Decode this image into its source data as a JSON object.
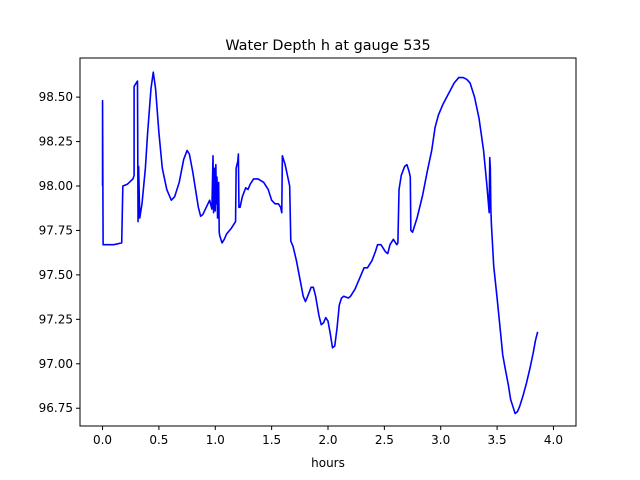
{
  "chart_data": {
    "type": "line",
    "title": "Water Depth h at gauge 535",
    "xlabel": "hours",
    "ylabel": "",
    "xlim": [
      -0.2,
      4.2
    ],
    "ylim": [
      96.65,
      98.72
    ],
    "x_ticks": [
      0.0,
      0.5,
      1.0,
      1.5,
      2.0,
      2.5,
      3.0,
      3.5,
      4.0
    ],
    "x_tick_labels": [
      "0.0",
      "0.5",
      "1.0",
      "1.5",
      "2.0",
      "2.5",
      "3.0",
      "3.5",
      "4.0"
    ],
    "y_ticks": [
      96.75,
      97.0,
      97.25,
      97.5,
      97.75,
      98.0,
      98.25,
      98.5
    ],
    "y_tick_labels": [
      "96.75",
      "97.00",
      "97.25",
      "97.50",
      "97.75",
      "98.00",
      "98.25",
      "98.50"
    ],
    "grid": false,
    "colors": {
      "line": "#0000ff",
      "axes": "#000000",
      "background": "#ffffff"
    },
    "series": [
      {
        "name": "",
        "points": [
          [
            0.0,
            98.0
          ],
          [
            0.0,
            98.48
          ],
          [
            0.005,
            97.67
          ],
          [
            0.1,
            97.67
          ],
          [
            0.17,
            97.68
          ],
          [
            0.18,
            98.0
          ],
          [
            0.22,
            98.01
          ],
          [
            0.27,
            98.04
          ],
          [
            0.28,
            98.06
          ],
          [
            0.28,
            98.56
          ],
          [
            0.31,
            98.59
          ],
          [
            0.315,
            97.8
          ],
          [
            0.32,
            98.08
          ],
          [
            0.32,
            98.11
          ],
          [
            0.33,
            97.82
          ],
          [
            0.35,
            97.9
          ],
          [
            0.38,
            98.1
          ],
          [
            0.4,
            98.3
          ],
          [
            0.43,
            98.55
          ],
          [
            0.45,
            98.64
          ],
          [
            0.47,
            98.55
          ],
          [
            0.5,
            98.3
          ],
          [
            0.53,
            98.1
          ],
          [
            0.57,
            97.98
          ],
          [
            0.61,
            97.92
          ],
          [
            0.64,
            97.94
          ],
          [
            0.68,
            98.02
          ],
          [
            0.72,
            98.15
          ],
          [
            0.75,
            98.2
          ],
          [
            0.77,
            98.18
          ],
          [
            0.8,
            98.08
          ],
          [
            0.82,
            98.0
          ],
          [
            0.85,
            97.88
          ],
          [
            0.87,
            97.83
          ],
          [
            0.89,
            97.84
          ],
          [
            0.92,
            97.88
          ],
          [
            0.95,
            97.92
          ],
          [
            0.97,
            97.87
          ],
          [
            0.98,
            98.17
          ],
          [
            0.985,
            97.85
          ],
          [
            0.99,
            98.1
          ],
          [
            1.0,
            97.86
          ],
          [
            1.005,
            98.12
          ],
          [
            1.01,
            97.9
          ],
          [
            1.015,
            98.05
          ],
          [
            1.02,
            97.82
          ],
          [
            1.03,
            98.02
          ],
          [
            1.035,
            97.74
          ],
          [
            1.04,
            97.72
          ],
          [
            1.06,
            97.68
          ],
          [
            1.08,
            97.7
          ],
          [
            1.1,
            97.73
          ],
          [
            1.14,
            97.76
          ],
          [
            1.18,
            97.8
          ],
          [
            1.185,
            98.1
          ],
          [
            1.2,
            98.14
          ],
          [
            1.205,
            98.18
          ],
          [
            1.21,
            97.88
          ],
          [
            1.22,
            97.88
          ],
          [
            1.24,
            97.94
          ],
          [
            1.27,
            97.99
          ],
          [
            1.29,
            97.98
          ],
          [
            1.31,
            98.01
          ],
          [
            1.34,
            98.04
          ],
          [
            1.38,
            98.04
          ],
          [
            1.43,
            98.02
          ],
          [
            1.47,
            97.98
          ],
          [
            1.5,
            97.92
          ],
          [
            1.53,
            97.9
          ],
          [
            1.56,
            97.9
          ],
          [
            1.58,
            97.88
          ],
          [
            1.59,
            97.85
          ],
          [
            1.595,
            98.17
          ],
          [
            1.62,
            98.12
          ],
          [
            1.66,
            98.0
          ],
          [
            1.67,
            97.69
          ],
          [
            1.69,
            97.66
          ],
          [
            1.72,
            97.58
          ],
          [
            1.75,
            97.48
          ],
          [
            1.78,
            97.38
          ],
          [
            1.8,
            97.35
          ],
          [
            1.82,
            97.38
          ],
          [
            1.85,
            97.43
          ],
          [
            1.87,
            97.43
          ],
          [
            1.89,
            97.38
          ],
          [
            1.92,
            97.27
          ],
          [
            1.94,
            97.22
          ],
          [
            1.96,
            97.23
          ],
          [
            1.98,
            97.26
          ],
          [
            2.0,
            97.24
          ],
          [
            2.02,
            97.17
          ],
          [
            2.04,
            97.09
          ],
          [
            2.06,
            97.1
          ],
          [
            2.08,
            97.2
          ],
          [
            2.1,
            97.33
          ],
          [
            2.12,
            97.37
          ],
          [
            2.14,
            97.38
          ],
          [
            2.18,
            97.37
          ],
          [
            2.2,
            97.38
          ],
          [
            2.24,
            97.42
          ],
          [
            2.28,
            97.48
          ],
          [
            2.32,
            97.54
          ],
          [
            2.35,
            97.54
          ],
          [
            2.39,
            97.58
          ],
          [
            2.42,
            97.63
          ],
          [
            2.44,
            97.67
          ],
          [
            2.47,
            97.67
          ],
          [
            2.51,
            97.63
          ],
          [
            2.53,
            97.62
          ],
          [
            2.55,
            97.67
          ],
          [
            2.58,
            97.7
          ],
          [
            2.61,
            97.67
          ],
          [
            2.62,
            97.68
          ],
          [
            2.63,
            97.98
          ],
          [
            2.65,
            98.06
          ],
          [
            2.68,
            98.11
          ],
          [
            2.7,
            98.12
          ],
          [
            2.72,
            98.08
          ],
          [
            2.73,
            98.05
          ],
          [
            2.735,
            97.75
          ],
          [
            2.75,
            97.74
          ],
          [
            2.79,
            97.82
          ],
          [
            2.84,
            97.95
          ],
          [
            2.88,
            98.08
          ],
          [
            2.92,
            98.2
          ],
          [
            2.95,
            98.33
          ],
          [
            2.98,
            98.4
          ],
          [
            3.02,
            98.46
          ],
          [
            3.07,
            98.52
          ],
          [
            3.12,
            98.58
          ],
          [
            3.16,
            98.61
          ],
          [
            3.2,
            98.61
          ],
          [
            3.23,
            98.6
          ],
          [
            3.26,
            98.58
          ],
          [
            3.3,
            98.5
          ],
          [
            3.34,
            98.38
          ],
          [
            3.38,
            98.2
          ],
          [
            3.41,
            98.0
          ],
          [
            3.43,
            97.85
          ],
          [
            3.435,
            98.16
          ],
          [
            3.44,
            98.1
          ],
          [
            3.445,
            97.86
          ],
          [
            3.45,
            97.78
          ],
          [
            3.47,
            97.55
          ],
          [
            3.5,
            97.37
          ],
          [
            3.53,
            97.18
          ],
          [
            3.55,
            97.05
          ],
          [
            3.57,
            96.98
          ],
          [
            3.6,
            96.88
          ],
          [
            3.62,
            96.8
          ],
          [
            3.64,
            96.76
          ],
          [
            3.66,
            96.72
          ],
          [
            3.68,
            96.73
          ],
          [
            3.7,
            96.76
          ],
          [
            3.73,
            96.82
          ],
          [
            3.76,
            96.89
          ],
          [
            3.79,
            96.97
          ],
          [
            3.82,
            97.06
          ],
          [
            3.84,
            97.13
          ],
          [
            3.86,
            97.18
          ]
        ]
      }
    ]
  }
}
